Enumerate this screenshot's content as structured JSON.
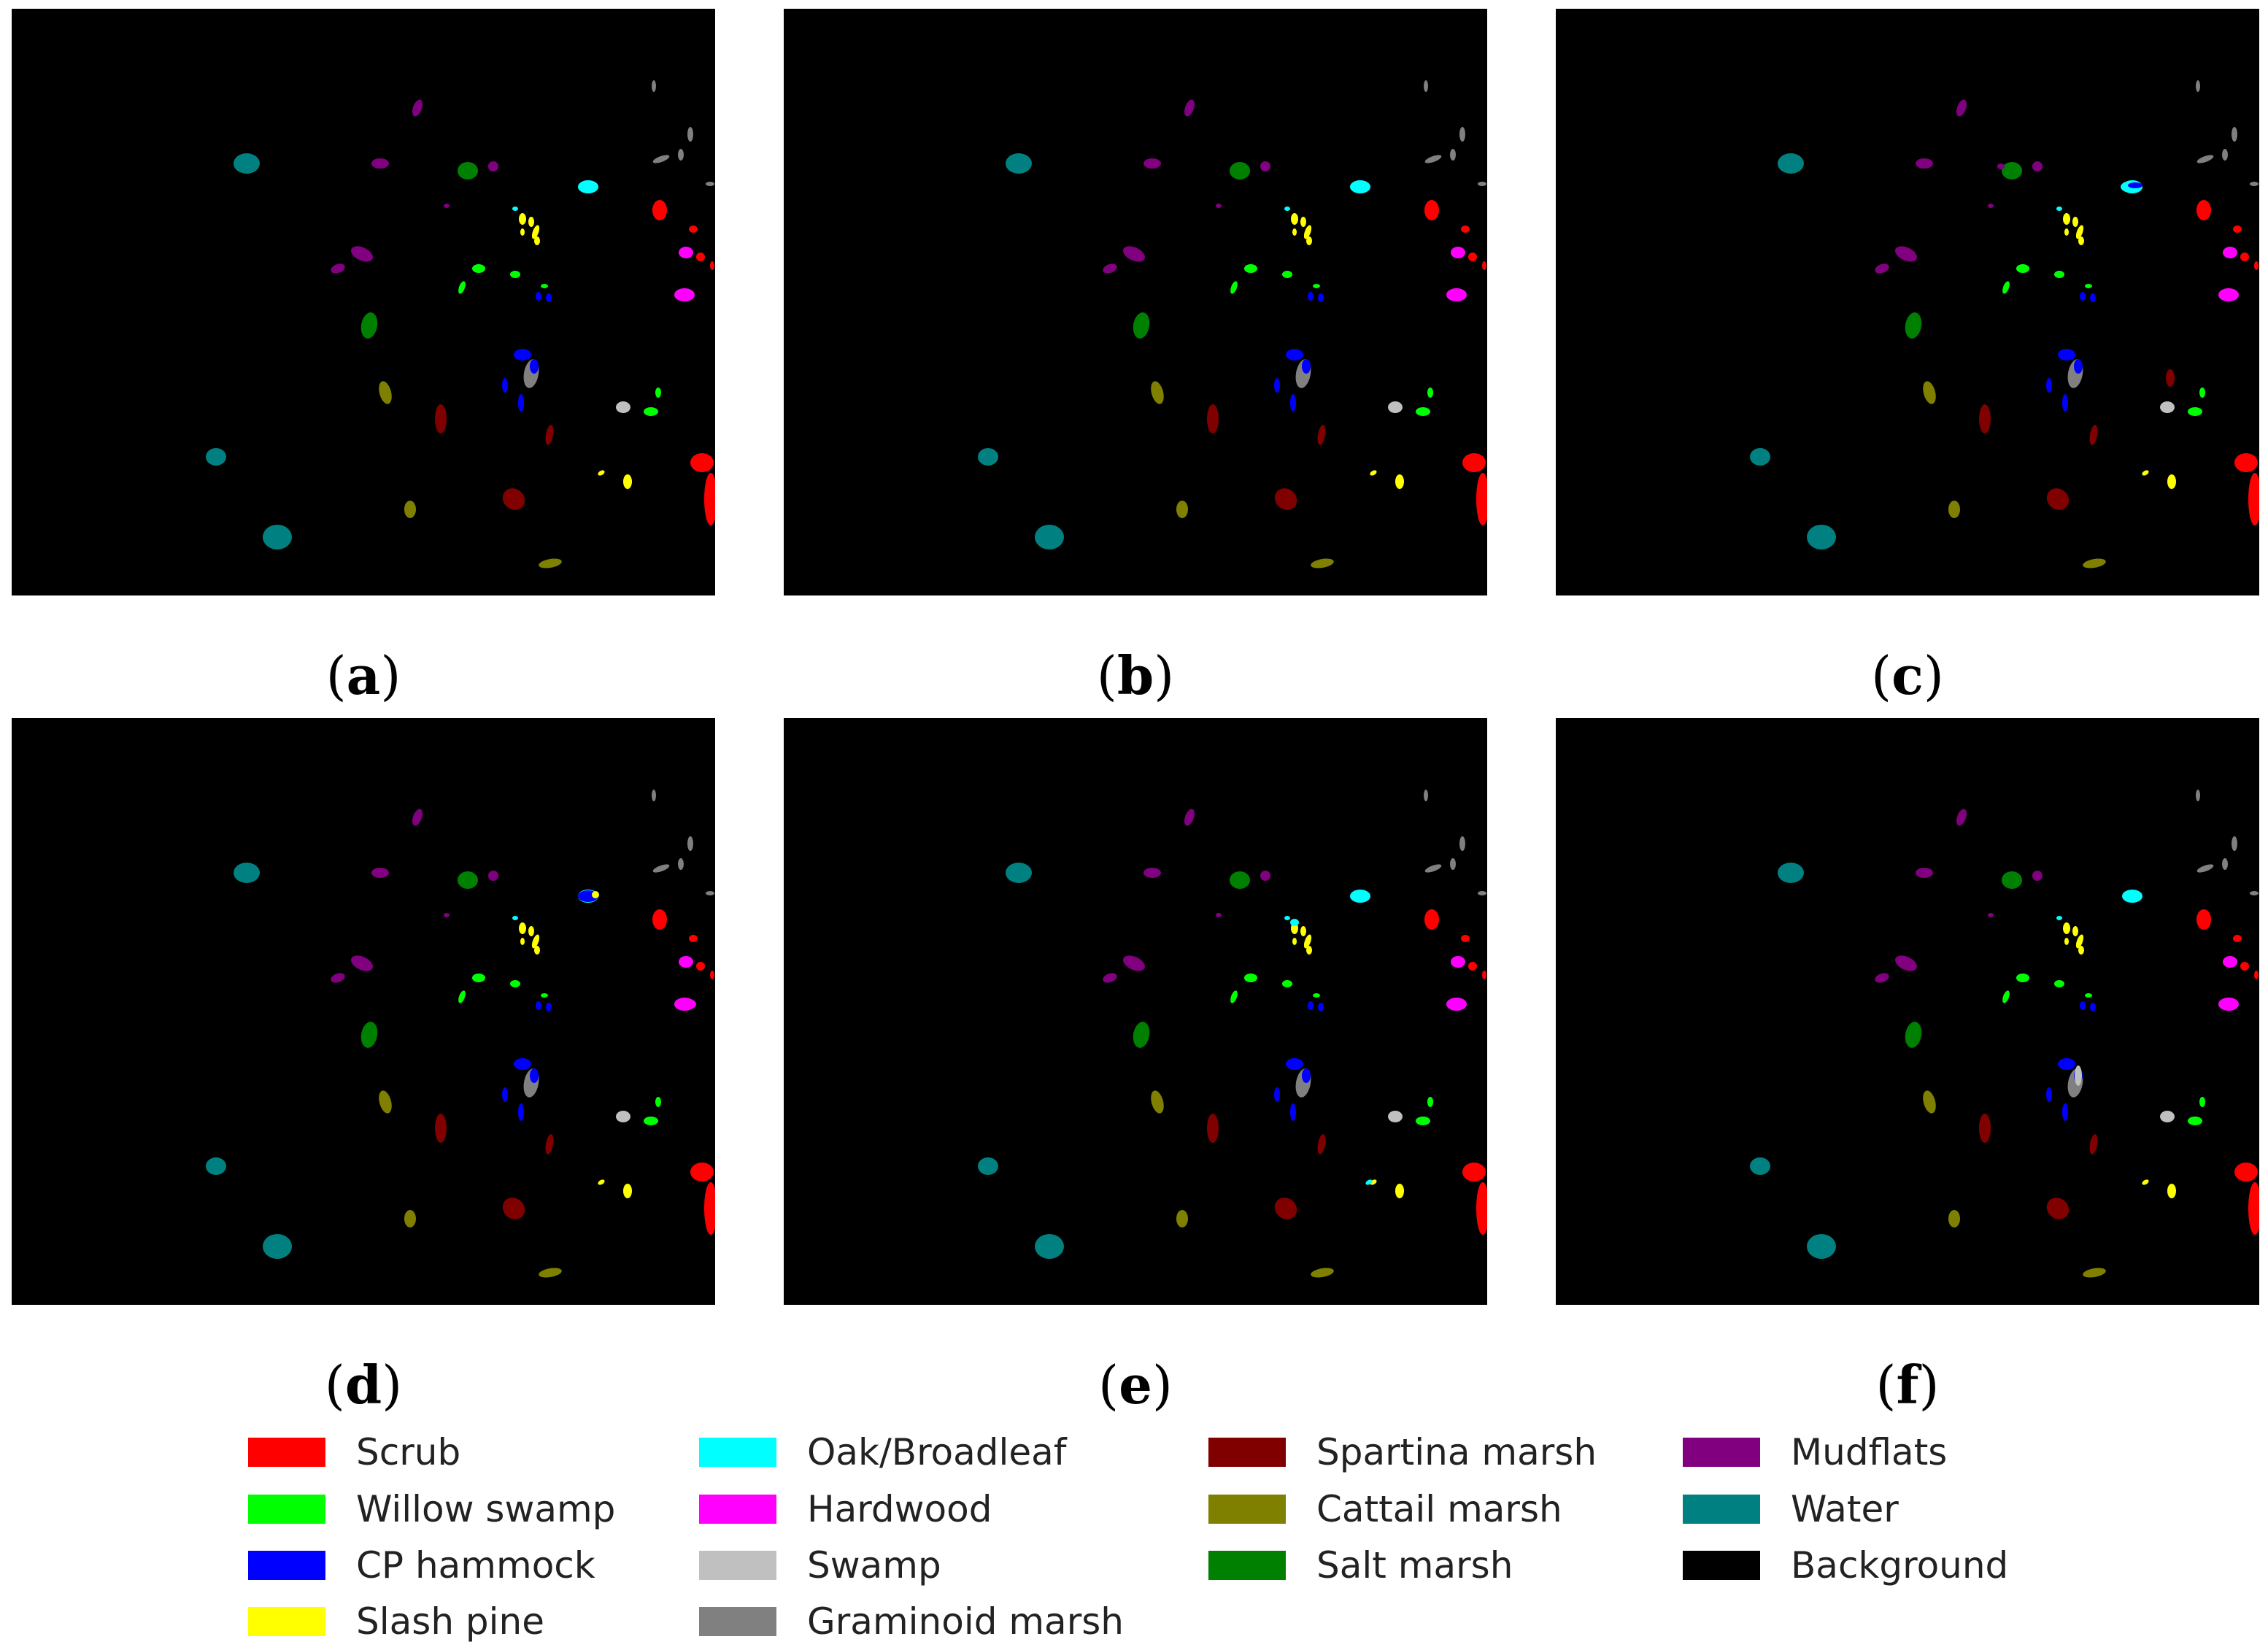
{
  "panels": [
    {
      "id": "a",
      "label_letter": "a"
    },
    {
      "id": "b",
      "label_letter": "b"
    },
    {
      "id": "c",
      "label_letter": "c"
    },
    {
      "id": "d",
      "label_letter": "d"
    },
    {
      "id": "e",
      "label_letter": "e"
    },
    {
      "id": "f",
      "label_letter": "f"
    }
  ],
  "legend": [
    {
      "label": "Scrub",
      "color": "#ff0000"
    },
    {
      "label": "Willow swamp",
      "color": "#00ff00"
    },
    {
      "label": "CP hammock",
      "color": "#0000ff"
    },
    {
      "label": "Slash pine",
      "color": "#ffff00"
    },
    {
      "label": "Oak/Broadleaf",
      "color": "#00ffff"
    },
    {
      "label": "Hardwood",
      "color": "#ff00ff"
    },
    {
      "label": "Swamp",
      "color": "#c0c0c0"
    },
    {
      "label": "Graminoid marsh",
      "color": "#808080"
    },
    {
      "label": "Spartina marsh",
      "color": "#800000"
    },
    {
      "label": "Cattail marsh",
      "color": "#808000"
    },
    {
      "label": "Salt marsh",
      "color": "#008000"
    },
    {
      "label": "Mudflats",
      "color": "#800080"
    },
    {
      "label": "Water",
      "color": "#008080"
    },
    {
      "label": "Background",
      "color": "#000000"
    }
  ]
}
